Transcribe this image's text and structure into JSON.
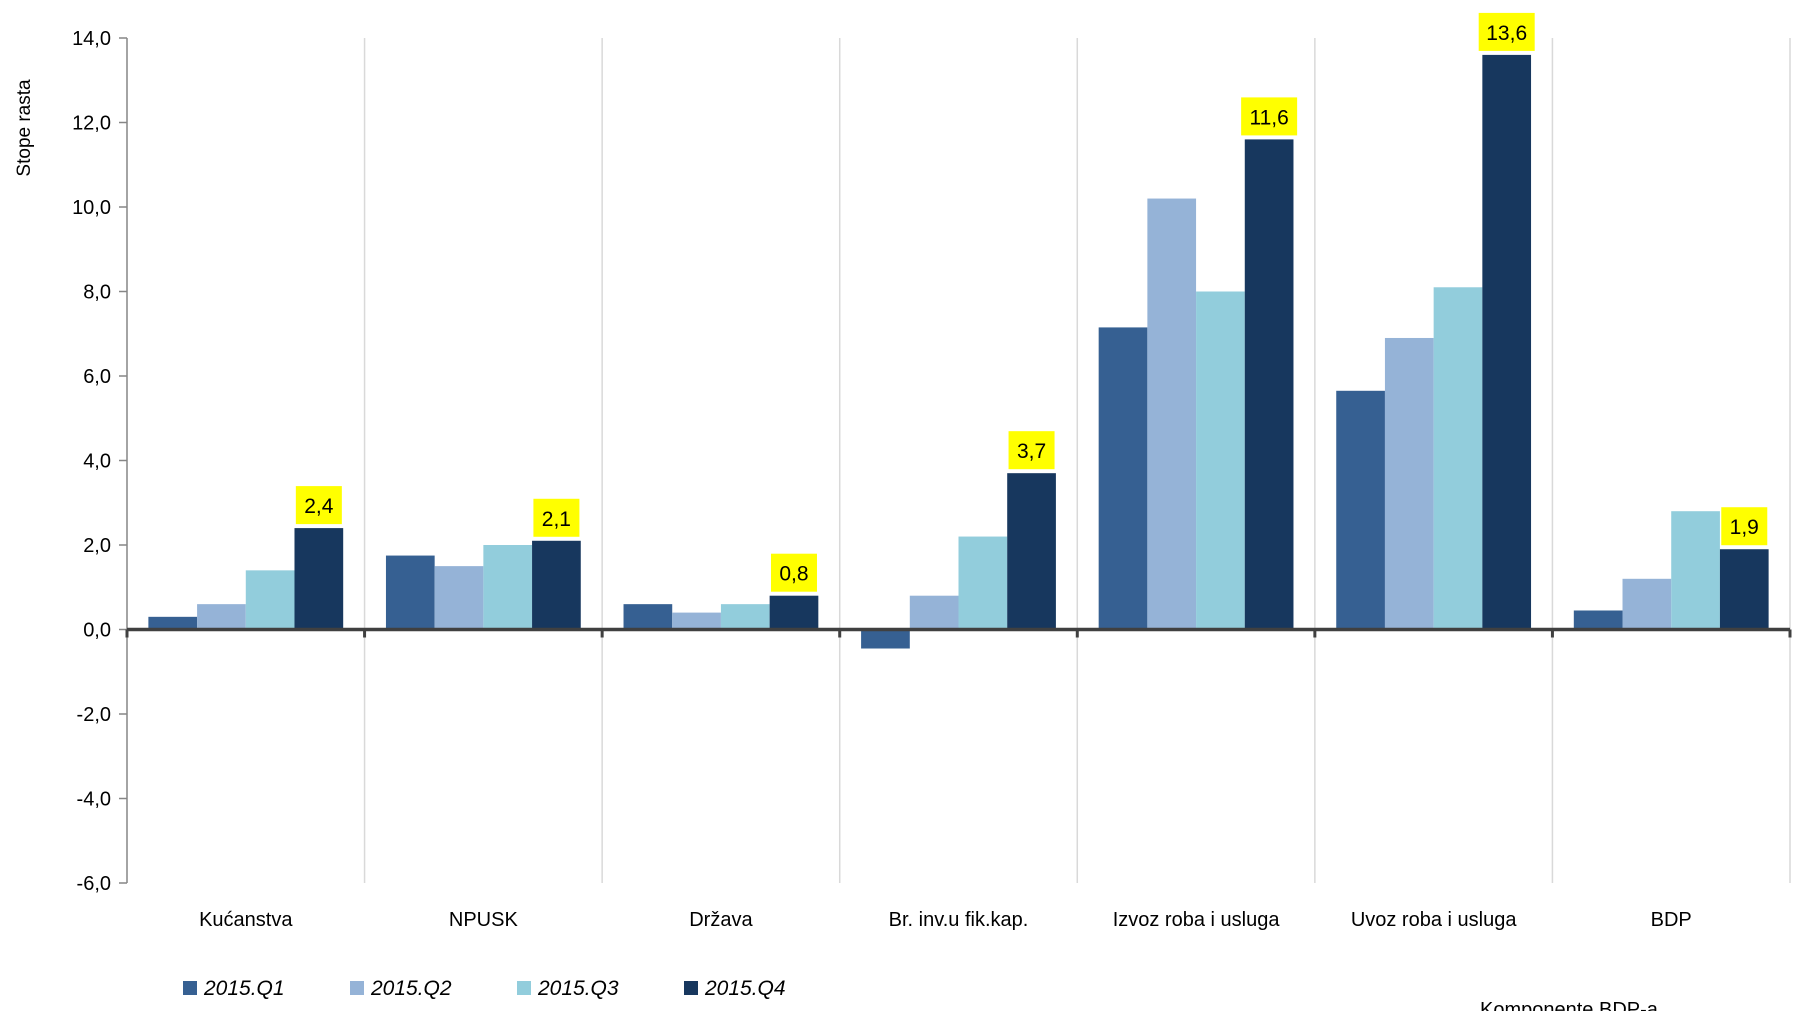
{
  "chart_data": {
    "type": "bar",
    "ylabel": "Stope rasta",
    "ylim": [
      -6,
      14
    ],
    "yticks": [
      -6,
      -4,
      -2,
      0,
      2,
      4,
      6,
      8,
      10,
      12,
      14
    ],
    "ytick_labels": [
      "-6,0",
      "-4,0",
      "-2,0",
      "0,0",
      "2,0",
      "4,0",
      "6,0",
      "8,0",
      "10,0",
      "12,0",
      "14,0"
    ],
    "grid": true,
    "legend_position": "bottom-left",
    "categories": [
      "Kućanstva",
      "NPUSK",
      "Država",
      "Br. inv.u fik.kap.",
      "Izvoz roba i usluga",
      "Uvoz roba i usluga",
      "BDP"
    ],
    "series": [
      {
        "name": "2015.Q1",
        "color": "#366092",
        "values": [
          0.3,
          1.75,
          0.6,
          -0.45,
          7.15,
          5.65,
          0.45
        ]
      },
      {
        "name": "2015.Q2",
        "color": "#95b3d7",
        "values": [
          0.6,
          1.5,
          0.4,
          0.8,
          10.2,
          6.9,
          1.2
        ]
      },
      {
        "name": "2015.Q3",
        "color": "#92cddc",
        "values": [
          1.4,
          2.0,
          0.6,
          2.2,
          8.0,
          8.1,
          2.8
        ]
      },
      {
        "name": "2015.Q4",
        "color": "#17375e",
        "values": [
          2.4,
          2.1,
          0.8,
          3.7,
          11.6,
          13.6,
          1.9
        ]
      }
    ],
    "data_labels": {
      "series": "2015.Q4",
      "texts": [
        "2,4",
        "2,1",
        "0,8",
        "3,7",
        "11,6",
        "13,6",
        "1,9"
      ],
      "highlight_color": "#ffff00"
    },
    "footer_note": "Komponente BDP-a"
  }
}
